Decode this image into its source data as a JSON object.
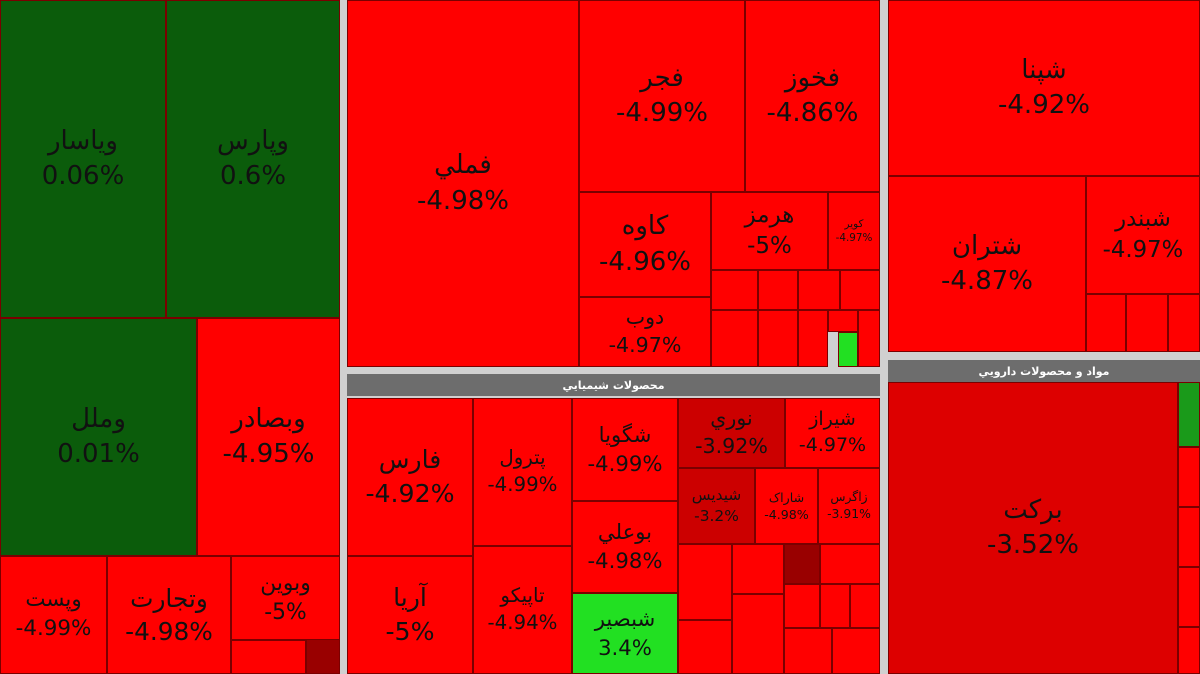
{
  "panels": [
    {
      "tiles": [
        {
          "name": "وياسار",
          "change": "0.06%"
        },
        {
          "name": "وپارس",
          "change": "0.6%"
        },
        {
          "name": "وملل",
          "change": "0.01%"
        },
        {
          "name": "وبصادر",
          "change": "-4.95%"
        },
        {
          "name": "وپست",
          "change": "-4.99%"
        },
        {
          "name": "وتجارت",
          "change": "-4.98%"
        },
        {
          "name": "وبوين",
          "change": "-5%"
        }
      ]
    },
    {
      "tiles": [
        {
          "name": "فملي",
          "change": "-4.98%"
        },
        {
          "name": "فجر",
          "change": "-4.99%"
        },
        {
          "name": "فخوز",
          "change": "-4.86%"
        },
        {
          "name": "کاوه",
          "change": "-4.96%"
        },
        {
          "name": "دوب",
          "change": "-4.97%"
        },
        {
          "name": "هرمز",
          "change": "-5%"
        },
        {
          "name": "کویر",
          "change": "-4.97%"
        }
      ]
    },
    {
      "tiles": [
        {
          "name": "شپنا",
          "change": "-4.92%"
        },
        {
          "name": "شتران",
          "change": "-4.87%"
        },
        {
          "name": "شبندر",
          "change": "-4.97%"
        }
      ]
    },
    {
      "title": "محصولات شيميايي",
      "tiles": [
        {
          "name": "فارس",
          "change": "-4.92%"
        },
        {
          "name": "آريا",
          "change": "-5%"
        },
        {
          "name": "پترول",
          "change": "-4.99%"
        },
        {
          "name": "تاپيکو",
          "change": "-4.94%"
        },
        {
          "name": "شگويا",
          "change": "-4.99%"
        },
        {
          "name": "بوعلي",
          "change": "-4.98%"
        },
        {
          "name": "شبصير",
          "change": "3.4%"
        },
        {
          "name": "نوري",
          "change": "-3.92%"
        },
        {
          "name": "شيراز",
          "change": "-4.97%"
        },
        {
          "name": "شيديس",
          "change": "-3.2%"
        },
        {
          "name": "شاراک",
          "change": "-4.98%"
        },
        {
          "name": "زاگرس",
          "change": "-3.91%"
        }
      ]
    },
    {
      "title": "مواد و محصولات دارويي",
      "tiles": [
        {
          "name": "برکت",
          "change": "-3.52%"
        }
      ]
    }
  ]
}
